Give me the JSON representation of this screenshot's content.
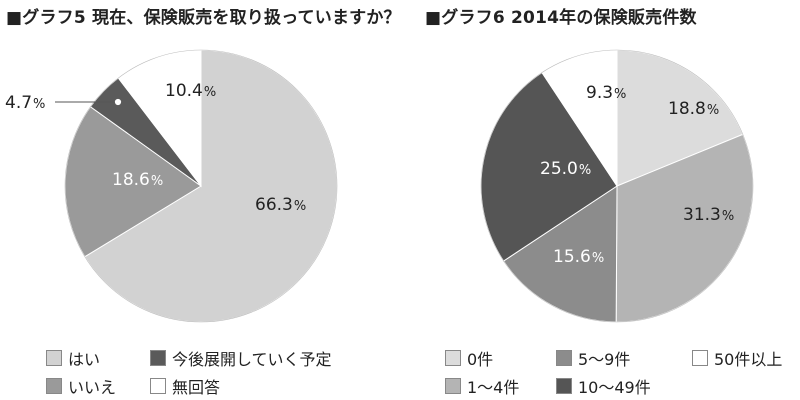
{
  "chart_data": [
    {
      "type": "pie",
      "title": "■グラフ5 現在、保険販売を取り扱っていますか？",
      "slices": [
        {
          "label": "はい",
          "value": 66.3,
          "text": "66.3",
          "unit": "%",
          "color": "#d2d2d2",
          "text_color": "#222222"
        },
        {
          "label": "いいえ",
          "value": 18.6,
          "text": "18.6",
          "unit": "%",
          "color": "#9a9a9a",
          "text_color": "#ffffff"
        },
        {
          "label": "今後展開していく予定",
          "value": 4.7,
          "text": "4.7",
          "unit": "%",
          "color": "#5a5a5a",
          "text_color": "#222222"
        },
        {
          "label": "無回答",
          "value": 10.4,
          "text": "10.4",
          "unit": "%",
          "color": "#ffffff",
          "text_color": "#222222"
        }
      ],
      "legend": [
        {
          "label": "はい",
          "color": "#d2d2d2"
        },
        {
          "label": "今後展開していく予定",
          "color": "#5a5a5a"
        },
        {
          "label": "いいえ",
          "color": "#9a9a9a"
        },
        {
          "label": "無回答",
          "color": "#ffffff"
        }
      ]
    },
    {
      "type": "pie",
      "title": "■グラフ6 2014年の保険販売件数",
      "slices": [
        {
          "label": "0件",
          "value": 18.8,
          "text": "18.8",
          "unit": "%",
          "color": "#dcdcdc",
          "text_color": "#222222"
        },
        {
          "label": "1〜4件",
          "value": 31.3,
          "text": "31.3",
          "unit": "%",
          "color": "#b4b4b4",
          "text_color": "#222222"
        },
        {
          "label": "5〜9件",
          "value": 15.6,
          "text": "15.6",
          "unit": "%",
          "color": "#8c8c8c",
          "text_color": "#ffffff"
        },
        {
          "label": "10〜49件",
          "value": 25.0,
          "text": "25.0",
          "unit": "%",
          "color": "#555555",
          "text_color": "#ffffff"
        },
        {
          "label": "50件以上",
          "value": 9.3,
          "text": "9.3",
          "unit": "%",
          "color": "#ffffff",
          "text_color": "#222222"
        }
      ],
      "legend": [
        {
          "label": "0件",
          "color": "#dcdcdc"
        },
        {
          "label": "5〜9件",
          "color": "#8c8c8c"
        },
        {
          "label": "50件以上",
          "color": "#ffffff"
        },
        {
          "label": "1〜4件",
          "color": "#b4b4b4"
        },
        {
          "label": "10〜49件",
          "color": "#555555"
        }
      ]
    }
  ]
}
